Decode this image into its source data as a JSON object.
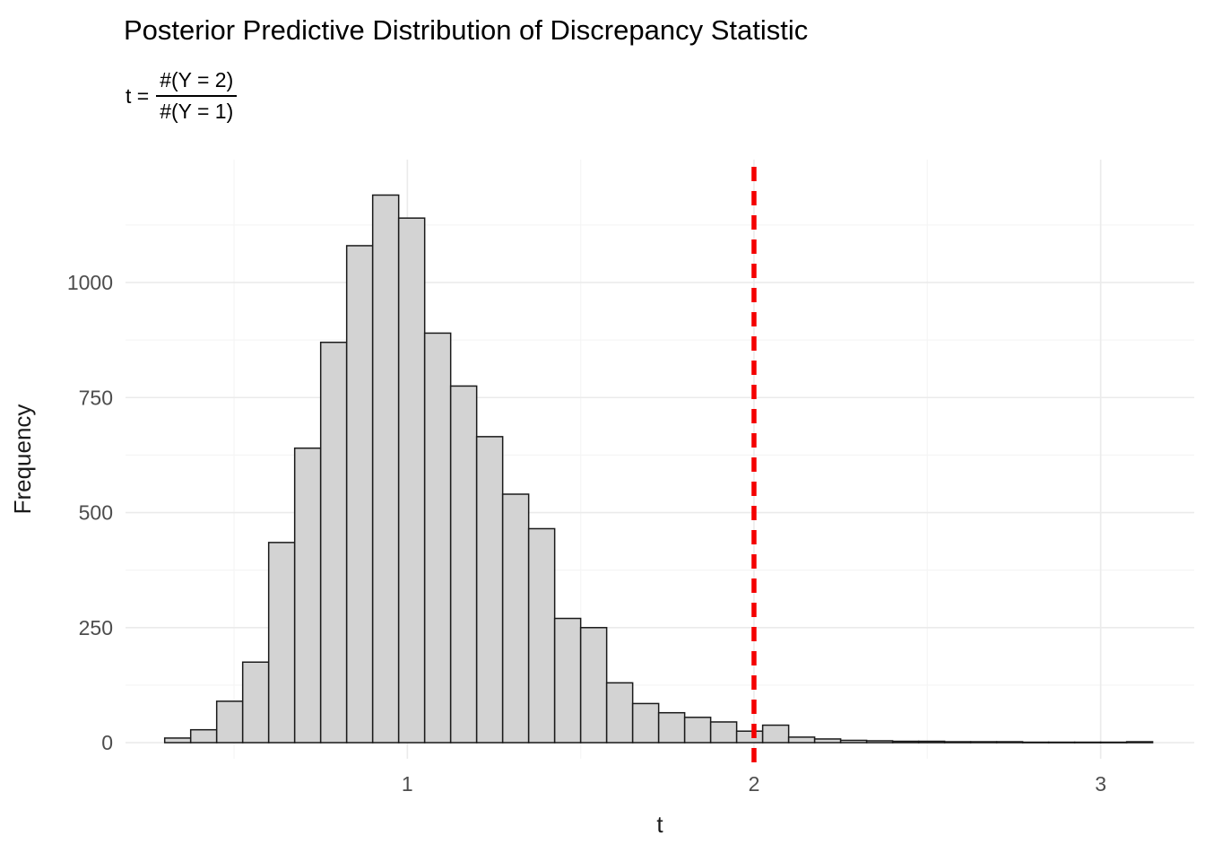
{
  "chart_data": {
    "type": "bar",
    "subtype": "histogram",
    "title": "Posterior Predictive Distribution of Discrepancy Statistic",
    "subtitle": {
      "prefix": "t =",
      "numerator": "#(Y = 2)",
      "denominator": "#(Y = 1)",
      "as_text": "t = #(Y = 2) / #(Y = 1)"
    },
    "xlabel": "t",
    "ylabel": "Frequency",
    "bin_start": 0.3,
    "bin_width": 0.075,
    "counts": [
      10,
      28,
      90,
      175,
      435,
      640,
      870,
      1080,
      1190,
      1140,
      890,
      775,
      665,
      540,
      465,
      270,
      250,
      130,
      85,
      65,
      55,
      45,
      25,
      38,
      12,
      8,
      5,
      4,
      3,
      3,
      2,
      2,
      2,
      1,
      1,
      1,
      1,
      2
    ],
    "x_ticks": [
      "1",
      "2",
      "3"
    ],
    "x_tick_values": [
      1,
      2,
      3
    ],
    "y_ticks": [
      "0",
      "250",
      "500",
      "750",
      "1000"
    ],
    "y_tick_values": [
      0,
      250,
      500,
      750,
      1000
    ],
    "x_minor_ticks": [
      0.5,
      1.5,
      2.5
    ],
    "y_minor_ticks": [
      125,
      375,
      625,
      875,
      1125
    ],
    "xlim": [
      0.187,
      3.27
    ],
    "ylim": [
      -35,
      1267
    ],
    "grid": true,
    "legend": "none",
    "reference_line": {
      "x": 2,
      "color": "#F40000",
      "style": "dashed"
    },
    "colors": {
      "bar_fill": "#D3D3D3",
      "bar_stroke": "#1A1A1A",
      "grid_major": "#EBEBEB",
      "grid_minor": "#F5F5F5",
      "axis_text": "#4D4D4D",
      "axis_title": "#1A1A1A",
      "background": "#FFFFFF"
    }
  }
}
